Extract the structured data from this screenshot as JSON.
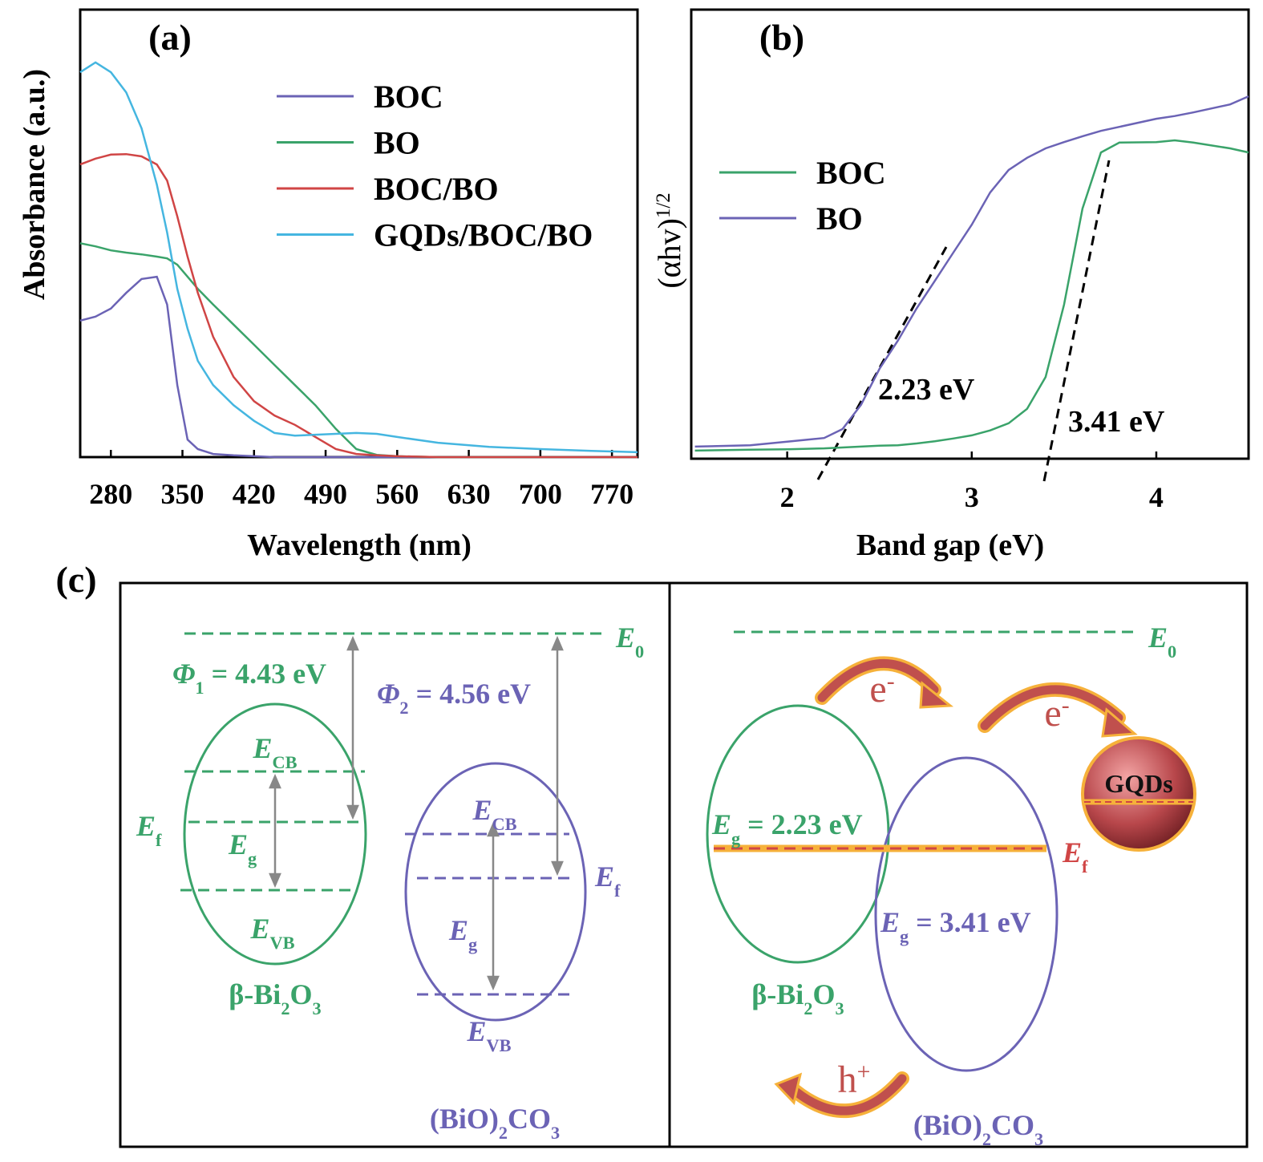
{
  "chart_data": [
    {
      "type": "line",
      "label": "(a)",
      "xlabel": "Wavelength (nm)",
      "ylabel": [
        "Absorbance (a.u.)"
      ],
      "xlim": [
        250,
        795
      ],
      "ylim": [
        0,
        1
      ],
      "xticks": [
        280,
        350,
        420,
        490,
        560,
        630,
        700,
        770
      ],
      "x": [
        250,
        265,
        280,
        295,
        310,
        325,
        335,
        345,
        355,
        365,
        380,
        400,
        420,
        440,
        460,
        480,
        500,
        520,
        540,
        560,
        600,
        650,
        700,
        750,
        795
      ],
      "series": [
        {
          "name": "BOC",
          "color": "#6b63b5",
          "values": [
            0.305,
            0.314,
            0.332,
            0.367,
            0.398,
            0.403,
            0.341,
            0.161,
            0.039,
            0.018,
            0.007,
            0.004,
            0.002,
            0,
            0,
            0,
            0,
            0,
            0,
            0,
            0,
            0,
            0,
            0,
            0
          ]
        },
        {
          "name": "BO",
          "color": "#3aa36a",
          "values": [
            0.478,
            0.471,
            0.462,
            0.457,
            0.453,
            0.448,
            0.444,
            0.43,
            0.403,
            0.376,
            0.341,
            0.296,
            0.251,
            0.206,
            0.161,
            0.116,
            0.063,
            0.018,
            0.005,
            0.002,
            0,
            0,
            0,
            0,
            0
          ]
        },
        {
          "name": "BOC/BO",
          "color": "#d04545",
          "values": [
            0.654,
            0.667,
            0.676,
            0.677,
            0.672,
            0.654,
            0.618,
            0.538,
            0.448,
            0.367,
            0.269,
            0.179,
            0.125,
            0.093,
            0.072,
            0.045,
            0.018,
            0.007,
            0.004,
            0.002,
            0,
            0,
            0,
            0,
            0
          ]
        },
        {
          "name": "GQDs/BOC/BO",
          "color": "#45b6e0",
          "values": [
            0.86,
            0.882,
            0.86,
            0.815,
            0.735,
            0.609,
            0.502,
            0.376,
            0.287,
            0.215,
            0.161,
            0.116,
            0.081,
            0.054,
            0.048,
            0.05,
            0.052,
            0.054,
            0.052,
            0.045,
            0.032,
            0.023,
            0.018,
            0.014,
            0.011
          ]
        }
      ]
    },
    {
      "type": "line",
      "label": "(b)",
      "xlabel": "Band gap (eV)",
      "ylabel": [
        "(αhv)",
        "1/2"
      ],
      "xlim": [
        1.48,
        4.5
      ],
      "ylim": [
        0,
        1
      ],
      "xticks": [
        2,
        3,
        4
      ],
      "x": [
        1.5,
        1.8,
        2.0,
        2.2,
        2.3,
        2.4,
        2.5,
        2.6,
        2.7,
        2.8,
        2.9,
        3.0,
        3.1,
        3.2,
        3.3,
        3.4,
        3.5,
        3.6,
        3.7,
        3.8,
        4.0,
        4.1,
        4.2,
        4.4,
        4.5
      ],
      "series": [
        {
          "name": "BOC",
          "color": "#3aa36a",
          "values": [
            0.018,
            0.02,
            0.021,
            0.023,
            0.025,
            0.027,
            0.029,
            0.03,
            0.034,
            0.039,
            0.045,
            0.052,
            0.063,
            0.079,
            0.111,
            0.182,
            0.343,
            0.557,
            0.682,
            0.704,
            0.705,
            0.709,
            0.704,
            0.691,
            0.682
          ]
        },
        {
          "name": "BO",
          "color": "#6b63b5",
          "values": [
            0.027,
            0.03,
            0.038,
            0.046,
            0.066,
            0.12,
            0.2,
            0.263,
            0.334,
            0.396,
            0.459,
            0.521,
            0.593,
            0.643,
            0.67,
            0.691,
            0.705,
            0.718,
            0.73,
            0.739,
            0.757,
            0.763,
            0.771,
            0.789,
            0.807
          ]
        }
      ],
      "annotations": [
        "2.23 eV",
        "3.41 eV"
      ]
    }
  ],
  "diagram": {
    "label": "(c)",
    "left": {
      "e0": [
        "E",
        "0"
      ],
      "phi1": [
        "Φ",
        "1",
        " = 4.43 eV"
      ],
      "phi2": [
        "Φ",
        "2",
        " = 4.56 eV"
      ],
      "bi2o3": {
        "ecb": [
          "E",
          "CB"
        ],
        "ef": [
          "E",
          "f"
        ],
        "eg": [
          "E",
          "g"
        ],
        "evb": [
          "E",
          "VB"
        ],
        "name": [
          "β-Bi",
          "2",
          "O",
          "3"
        ]
      },
      "bioco3": {
        "ecb": [
          "E",
          "CB"
        ],
        "ef": [
          "E",
          "f"
        ],
        "eg": [
          "E",
          "g"
        ],
        "evb": [
          "E",
          "VB"
        ],
        "name": [
          "(BiO)",
          "2",
          "CO",
          "3"
        ]
      }
    },
    "right": {
      "e0": [
        "E",
        "0"
      ],
      "eg1": [
        "E",
        "g",
        " = 2.23 eV"
      ],
      "eg2": [
        "E",
        "g",
        " = 3.41 eV"
      ],
      "ef": [
        "E",
        "f"
      ],
      "gqds": "GQDs",
      "name1": [
        "β-Bi",
        "2",
        "O",
        "3"
      ],
      "name2": [
        "(BiO)",
        "2",
        "CO",
        "3"
      ],
      "carriers": [
        [
          "e",
          "-"
        ],
        [
          "e",
          "-"
        ],
        [
          "h",
          "+"
        ]
      ]
    }
  }
}
